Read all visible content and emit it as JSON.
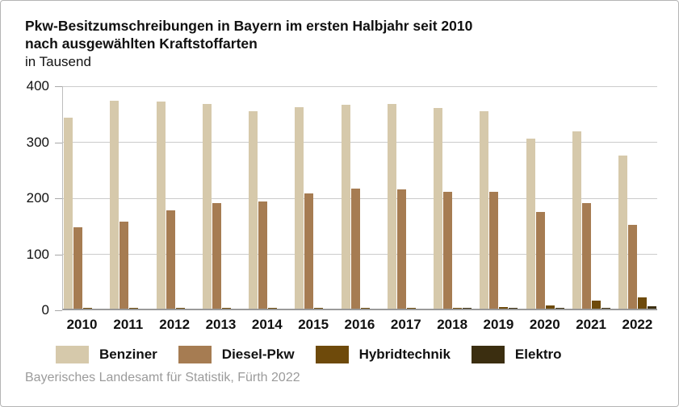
{
  "title": {
    "line1": "Pkw-Besitzumschreibungen in Bayern im ersten Halbjahr seit 2010",
    "line2": "nach ausgewählten Kraftstoffarten",
    "unit": "in Tausend"
  },
  "footer": {
    "source": "Bayerisches Landesamt für Statistik, Fürth 2022"
  },
  "colors": {
    "benziner": "#d6c9ab",
    "diesel": "#a67c52",
    "hybrid": "#6e4a0b",
    "elektro": "#3b2e10",
    "gridline": "#cbcbcb",
    "axis": "#9a9a9a",
    "footer_text": "#9b9b9b"
  },
  "chart_data": {
    "type": "bar",
    "title": "Pkw-Besitzumschreibungen in Bayern im ersten Halbjahr seit 2010 nach ausgewählten Kraftstoffarten",
    "ylabel": "in Tausend",
    "xlabel": "",
    "ylim": [
      0,
      400
    ],
    "yticks": [
      0,
      100,
      200,
      300,
      400
    ],
    "grid": true,
    "legend_position": "bottom",
    "categories": [
      "2010",
      "2011",
      "2012",
      "2013",
      "2014",
      "2015",
      "2016",
      "2017",
      "2018",
      "2019",
      "2020",
      "2021",
      "2022"
    ],
    "series": [
      {
        "name": "Benziner",
        "color": "#d6c9ab",
        "values": [
          341,
          371,
          370,
          366,
          352,
          360,
          364,
          366,
          358,
          352,
          304,
          317,
          274
        ]
      },
      {
        "name": "Diesel-Pkw",
        "color": "#a67c52",
        "values": [
          146,
          156,
          175,
          188,
          192,
          206,
          215,
          213,
          209,
          209,
          173,
          188,
          150
        ]
      },
      {
        "name": "Hybridtechnik",
        "color": "#6e4a0b",
        "values": [
          1,
          1,
          1,
          1,
          1,
          1,
          2,
          2,
          2,
          3,
          6,
          14,
          20
        ]
      },
      {
        "name": "Elektro",
        "color": "#3b2e10",
        "values": [
          0,
          0,
          0,
          0,
          0,
          0,
          0,
          0,
          1,
          1,
          1,
          2,
          5
        ]
      }
    ]
  }
}
